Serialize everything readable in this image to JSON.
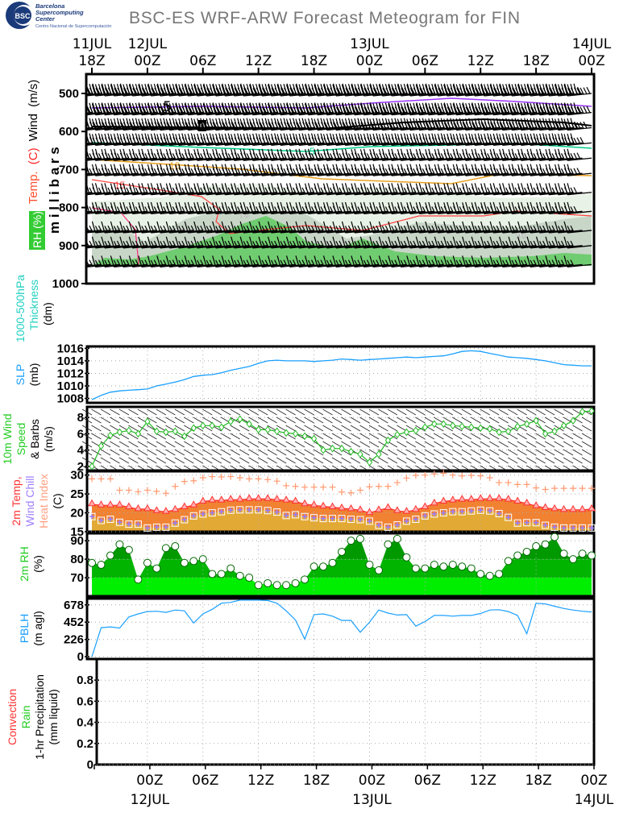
{
  "title": "BSC-ES WRF-ARW Forecast Meteogram for FIN",
  "logo": {
    "abbr": "BSC",
    "line1": "Barcelona",
    "line2": "Supercomputing",
    "line3": "Center",
    "line4": "Centro Nacional de Supercomputación"
  },
  "colors": {
    "temp": "#ff3030",
    "dew": "#9a7cff",
    "heat": "#ffa080",
    "slp": "#1aa0ff",
    "rh_green": "#00c000",
    "thickness": "#00c8c8"
  },
  "time_axis": {
    "hours_span": 54,
    "top_ticks": [
      {
        "hour": 0,
        "time": "18Z",
        "date": "11JUL"
      },
      {
        "hour": 6,
        "time": "00Z",
        "date": "12JUL"
      },
      {
        "hour": 12,
        "time": "06Z",
        "date": ""
      },
      {
        "hour": 18,
        "time": "12Z",
        "date": ""
      },
      {
        "hour": 24,
        "time": "18Z",
        "date": ""
      },
      {
        "hour": 30,
        "time": "00Z",
        "date": "13JUL"
      },
      {
        "hour": 36,
        "time": "06Z",
        "date": ""
      },
      {
        "hour": 42,
        "time": "12Z",
        "date": ""
      },
      {
        "hour": 48,
        "time": "18Z",
        "date": ""
      },
      {
        "hour": 54,
        "time": "00Z",
        "date": "14JUL"
      }
    ]
  },
  "chart_data": [
    {
      "type": "heatmap",
      "name": "upper-air",
      "ylabel_parts": [
        "Temp.",
        "(C)",
        "Wind",
        "(m/s)"
      ],
      "ylabel2": "m i l l i b a r s",
      "rh_label": "RH (%)",
      "yticks": [
        "500",
        "600",
        "700",
        "800",
        "900",
        "1000"
      ],
      "ylim": [
        450,
        1000
      ],
      "barb_levels": [
        500,
        550,
        590,
        630,
        670,
        710,
        760,
        810,
        860,
        900,
        950
      ],
      "barb_speeds": [
        22,
        20,
        17,
        15,
        13,
        12,
        10,
        9,
        8,
        8,
        7
      ],
      "contours": [
        {
          "label": "-5",
          "color": "#9933ff"
        },
        {
          "label": "0",
          "color": "#000000"
        },
        {
          "label": "5",
          "color": "#00cc88"
        },
        {
          "label": "10",
          "color": "#e8a020"
        },
        {
          "label": "15",
          "color": "#ff4040"
        },
        {
          "label": "70",
          "color": "#999999"
        },
        {
          "label": "90",
          "color": "#999999"
        }
      ]
    },
    {
      "type": "line",
      "name": "thickness",
      "ylabel": [
        "1000-500hPa",
        "Thickness",
        "(dm)"
      ],
      "values": []
    },
    {
      "type": "line",
      "name": "slp",
      "ylabel": [
        "SLP",
        "(mb)"
      ],
      "yticks": [
        "1016",
        "1014",
        "1012",
        "1010",
        "1008"
      ],
      "ylim": [
        1007.3,
        1016.3
      ],
      "values": [
        1007.8,
        1008.5,
        1009.0,
        1009.2,
        1009.3,
        1009.4,
        1009.5,
        1010.0,
        1010.3,
        1010.6,
        1011.0,
        1011.5,
        1011.7,
        1011.8,
        1012.1,
        1012.5,
        1012.8,
        1013.1,
        1013.6,
        1014.0,
        1014.1,
        1014.0,
        1014.0,
        1014.0,
        1013.9,
        1014.0,
        1014.1,
        1014.3,
        1014.2,
        1014.1,
        1014.2,
        1014.3,
        1014.4,
        1014.5,
        1014.6,
        1014.5,
        1014.6,
        1014.7,
        1014.8,
        1015.1,
        1015.5,
        1015.6,
        1015.5,
        1015.2,
        1014.9,
        1014.6,
        1014.5,
        1014.4,
        1014.2,
        1014.0,
        1013.7,
        1013.4,
        1013.3,
        1013.2,
        1013.2
      ]
    },
    {
      "type": "line",
      "name": "wind10m",
      "ylabel": [
        "10m Wind",
        "Speed",
        "& Barbs",
        "(m/s)"
      ],
      "yticks": [
        "8",
        "6",
        "4",
        "2"
      ],
      "ylim": [
        1.5,
        9.3
      ],
      "values": [
        2.0,
        4.5,
        5.8,
        6.2,
        6.4,
        6.0,
        7.5,
        6.3,
        6.2,
        6.3,
        5.7,
        6.7,
        7.0,
        7.0,
        6.8,
        7.5,
        7.8,
        7.2,
        6.5,
        6.5,
        6.3,
        6.1,
        6.0,
        5.7,
        5.4,
        4.0,
        4.2,
        4.2,
        3.8,
        3.5,
        2.5,
        3.5,
        5.2,
        5.9,
        6.2,
        6.4,
        6.8,
        7.2,
        7.2,
        7.0,
        6.9,
        6.8,
        6.7,
        6.6,
        6.2,
        6.3,
        6.9,
        7.2,
        7.6,
        6.0,
        6.3,
        7.0,
        7.6,
        8.7,
        8.8
      ]
    },
    {
      "type": "line",
      "name": "temperature",
      "ylabel": [
        "2m Temp,",
        "Wind Chill",
        "Heat Index",
        "(C)"
      ],
      "yticks": [
        "30",
        "25",
        "20",
        "15"
      ],
      "ylim": [
        15,
        31
      ],
      "series": [
        {
          "name": "2m Temp",
          "values": [
            22.3,
            22.0,
            22.0,
            22.0,
            21.5,
            21.0,
            21.0,
            20.5,
            20.3,
            20.8,
            21.5,
            22.0,
            23.0,
            23.3,
            23.3,
            23.5,
            23.5,
            23.7,
            23.7,
            23.7,
            23.5,
            23.3,
            23.0,
            22.3,
            22.0,
            21.7,
            21.5,
            21.2,
            21.0,
            20.7,
            20.0,
            20.7,
            21.3,
            20.5,
            20.3,
            20.8,
            21.5,
            22.5,
            23.0,
            23.3,
            23.5,
            23.5,
            23.7,
            23.7,
            23.7,
            23.5,
            23.0,
            22.5,
            21.8,
            21.3,
            21.0,
            20.8,
            20.8,
            20.8,
            21.0
          ]
        },
        {
          "name": "Wind Chill",
          "values": [
            19.0,
            18.0,
            18.3,
            17.5,
            17.0,
            17.0,
            16.0,
            16.2,
            16.2,
            17.3,
            18.2,
            19.2,
            19.7,
            20.0,
            20.3,
            20.7,
            20.8,
            20.8,
            20.8,
            20.6,
            20.2,
            19.3,
            19.5,
            19.0,
            18.7,
            18.5,
            18.5,
            18.5,
            18.3,
            18.2,
            17.8,
            16.7,
            16.2,
            16.8,
            17.8,
            18.3,
            19.2,
            19.7,
            20.0,
            20.3,
            20.3,
            20.5,
            20.7,
            20.5,
            19.8,
            18.8,
            17.3,
            17.4,
            17.4,
            16.7,
            16.2,
            16.0,
            16.0,
            16.0,
            16.0
          ]
        },
        {
          "name": "Heat Index",
          "values": [
            29.0,
            29.0,
            29.0,
            26.0,
            26.0,
            25.6,
            26.0,
            25.7,
            25.2,
            27.0,
            28.3,
            28.5,
            29.3,
            29.6,
            29.5,
            29.6,
            29.3,
            29.0,
            29.0,
            28.8,
            28.4,
            27.2,
            27.0,
            26.8,
            26.8,
            26.8,
            26.8,
            25.5,
            25.3,
            26.0,
            26.9,
            27.0,
            27.0,
            28.0,
            29.2,
            29.9,
            30.0,
            30.3,
            30.5,
            30.0,
            29.8,
            29.9,
            29.8,
            29.3,
            28.0,
            28.0,
            27.5,
            27.5,
            26.6,
            26.2,
            26.5,
            26.5,
            26.5,
            26.5,
            26.5
          ]
        }
      ]
    },
    {
      "type": "area",
      "name": "rh2m",
      "ylabel": [
        "2m RH",
        "(%)"
      ],
      "yticks": [
        "90",
        "80",
        "70"
      ],
      "ylim": [
        60,
        94
      ],
      "values": [
        78,
        77,
        82,
        88,
        85,
        69,
        78,
        75,
        86,
        87,
        78,
        79,
        80,
        72,
        72,
        75,
        71,
        70,
        66,
        67,
        66,
        66,
        67,
        69,
        76,
        76,
        78,
        84,
        90,
        91,
        77,
        74,
        88,
        91,
        81,
        75,
        75,
        77,
        76,
        77,
        76,
        75,
        72,
        71,
        72,
        79,
        82,
        84,
        87,
        88,
        92,
        83,
        80,
        83,
        82
      ]
    },
    {
      "type": "line",
      "name": "pblh",
      "ylabel": [
        "PBLH",
        "(m agl)"
      ],
      "yticks": [
        "678",
        "452",
        "226",
        "0"
      ],
      "ylim": [
        -30,
        760
      ],
      "values": [
        0,
        380,
        390,
        375,
        520,
        560,
        590,
        595,
        580,
        610,
        600,
        440,
        560,
        620,
        700,
        710,
        740,
        740,
        740,
        735,
        700,
        600,
        480,
        230,
        550,
        560,
        530,
        475,
        475,
        320,
        450,
        610,
        570,
        545,
        550,
        400,
        460,
        540,
        540,
        530,
        540,
        540,
        565,
        610,
        615,
        590,
        540,
        300,
        700,
        690,
        660,
        630,
        610,
        595,
        585
      ]
    },
    {
      "type": "bar",
      "name": "precip",
      "ylabel": [
        "Convection",
        "Rain",
        "1-hr Precipitation",
        "(mm liquid)"
      ],
      "yticks": [
        "0.8",
        "0.6",
        "0.4",
        "0.2",
        "0"
      ],
      "ylim": [
        0,
        1.0
      ],
      "values": [],
      "xticks_bottom": [
        {
          "hour": 6,
          "time": "00Z",
          "date": "12JUL"
        },
        {
          "hour": 12,
          "time": "06Z",
          "date": ""
        },
        {
          "hour": 18,
          "time": "12Z",
          "date": ""
        },
        {
          "hour": 24,
          "time": "18Z",
          "date": ""
        },
        {
          "hour": 30,
          "time": "00Z",
          "date": "13JUL"
        },
        {
          "hour": 36,
          "time": "06Z",
          "date": ""
        },
        {
          "hour": 42,
          "time": "12Z",
          "date": ""
        },
        {
          "hour": 48,
          "time": "18Z",
          "date": ""
        },
        {
          "hour": 54,
          "time": "00Z",
          "date": "14JUL"
        }
      ]
    }
  ]
}
